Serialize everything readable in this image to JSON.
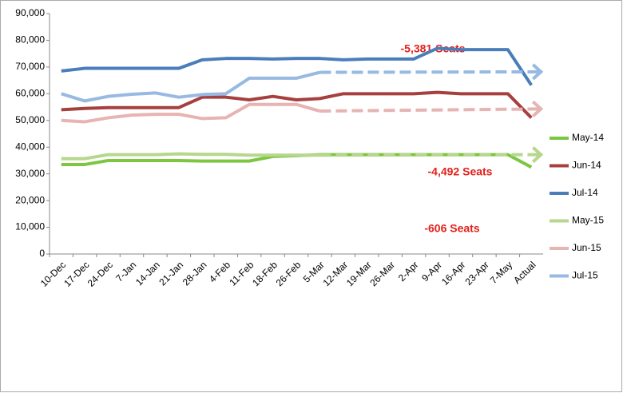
{
  "chart_data": {
    "type": "line",
    "categories": [
      "10-Dec",
      "17-Dec",
      "24-Dec",
      "7-Jan",
      "14-Jan",
      "21-Jan",
      "28-Jan",
      "4-Feb",
      "11-Feb",
      "18-Feb",
      "26-Feb",
      "5-Mar",
      "12-Mar",
      "19-Mar",
      "26-Mar",
      "2-Apr",
      "9-Apr",
      "16-Apr",
      "23-Apr",
      "7-May",
      "Actual"
    ],
    "series": [
      {
        "name": "May-14",
        "color": "#7dc642",
        "values": [
          33500,
          33500,
          35000,
          35000,
          35000,
          35000,
          34800,
          34800,
          34800,
          36500,
          36800,
          37200,
          37200,
          37200,
          37200,
          37200,
          37200,
          37200,
          37200,
          37200,
          32500
        ]
      },
      {
        "name": "Jun-14",
        "color": "#a5403e",
        "values": [
          54000,
          54500,
          54800,
          54800,
          54800,
          54800,
          58700,
          58700,
          57700,
          59000,
          57700,
          58200,
          60000,
          60000,
          60000,
          60000,
          60500,
          60000,
          60000,
          60000,
          51000
        ]
      },
      {
        "name": "Jul-14",
        "color": "#4a7ebb",
        "values": [
          68500,
          69500,
          69500,
          69500,
          69500,
          69500,
          72700,
          73200,
          73200,
          73000,
          73200,
          73200,
          72700,
          73000,
          73000,
          73000,
          77000,
          76500,
          76500,
          76500,
          63200
        ]
      },
      {
        "name": "May-15",
        "color": "#b7d68e",
        "values": [
          35700,
          35700,
          37200,
          37200,
          37200,
          37500,
          37300,
          37300,
          37000,
          37000,
          37000,
          37000,
          null,
          null,
          null,
          null,
          null,
          null,
          null,
          null,
          null
        ],
        "projection": [
          null,
          null,
          null,
          null,
          null,
          null,
          null,
          null,
          null,
          null,
          null,
          37000,
          null,
          null,
          null,
          null,
          null,
          null,
          null,
          null,
          37200
        ]
      },
      {
        "name": "Jun-15",
        "color": "#e6b4b2",
        "values": [
          50000,
          49500,
          51000,
          52000,
          52300,
          52300,
          50700,
          51000,
          56000,
          56000,
          56000,
          53500,
          null,
          null,
          null,
          null,
          null,
          null,
          null,
          null,
          null
        ],
        "projection": [
          null,
          null,
          null,
          null,
          null,
          null,
          null,
          null,
          null,
          null,
          null,
          53500,
          null,
          null,
          null,
          null,
          null,
          null,
          null,
          null,
          54300
        ]
      },
      {
        "name": "Jul-15",
        "color": "#98b9e2",
        "values": [
          60000,
          57300,
          59000,
          59800,
          60300,
          58700,
          59700,
          60000,
          65800,
          65800,
          65800,
          68000,
          null,
          null,
          null,
          null,
          null,
          null,
          null,
          null,
          null
        ],
        "projection": [
          null,
          null,
          null,
          null,
          null,
          null,
          null,
          null,
          null,
          null,
          null,
          68000,
          null,
          null,
          null,
          null,
          null,
          null,
          null,
          null,
          68200
        ]
      }
    ],
    "annotations": [
      "-5,381 Seats",
      "-4,492 Seats",
      "-606 Seats"
    ],
    "ylim": [
      0,
      90000
    ],
    "yticks": [
      0,
      {
        "value": 10000,
        "label": "10,000"
      },
      {
        "value": 20000,
        "label": "20,000"
      },
      {
        "value": 30000,
        "label": "30,000"
      },
      {
        "value": 40000,
        "label": "40,000"
      },
      {
        "value": 50000,
        "label": "50,000"
      },
      {
        "value": 60000,
        "label": "60,000"
      },
      {
        "value": 70000,
        "label": "70,000"
      },
      {
        "value": 80000,
        "label": "80,000"
      },
      {
        "value": 90000,
        "label": "90,000"
      }
    ],
    "grid": false,
    "legend": "right"
  }
}
